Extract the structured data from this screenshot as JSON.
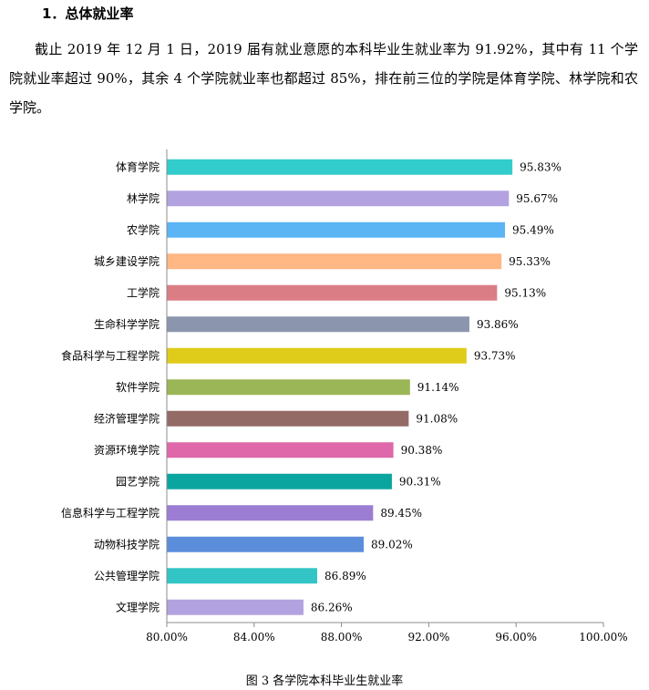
{
  "heading": "1．总体就业率",
  "paragraph": "截止 2019 年 12 月 1 日，2019 届有就业意愿的本科毕业生就业率为 91.92%，其中有 11 个学院就业率超过 90%，其余 4 个学院就业率也都超过 85%，排在前三位的学院是体育学院、林学院和农学院。",
  "caption": "图 3    各学院本科毕业生就业率",
  "chart_data": {
    "type": "bar",
    "orientation": "horizontal",
    "title": "",
    "xlabel": "",
    "ylabel": "",
    "xlim": [
      80,
      100
    ],
    "ticks": [
      "80.00%",
      "84.00%",
      "88.00%",
      "92.00%",
      "96.00%",
      "100.00%"
    ],
    "tick_values": [
      80,
      84,
      88,
      92,
      96,
      100
    ],
    "grid": false,
    "categories": [
      "体育学院",
      "林学院",
      "农学院",
      "城乡建设学院",
      "工学院",
      "生命科学学院",
      "食品科学与工程学院",
      "软件学院",
      "经济管理学院",
      "资源环境学院",
      "园艺学院",
      "信息科学与工程学院",
      "动物科技学院",
      "公共管理学院",
      "文理学院"
    ],
    "values": [
      95.83,
      95.67,
      95.49,
      95.33,
      95.13,
      93.86,
      93.73,
      91.14,
      91.08,
      90.38,
      90.31,
      89.45,
      89.02,
      86.89,
      86.26
    ],
    "value_labels": [
      "95.83%",
      "95.67%",
      "95.49%",
      "95.33%",
      "95.13%",
      "93.86%",
      "93.73%",
      "91.14%",
      "91.08%",
      "90.38%",
      "90.31%",
      "89.45%",
      "89.02%",
      "86.89%",
      "86.26%"
    ],
    "colors": [
      "#33CCCC",
      "#B3A2E0",
      "#5BB5F5",
      "#FFB784",
      "#DB7D85",
      "#8B96AE",
      "#DFCC1A",
      "#9BB656",
      "#946A67",
      "#DE68A9",
      "#0AA59E",
      "#9C7DD4",
      "#5C8DDB",
      "#33C5C5",
      "#B3A2E0"
    ]
  }
}
